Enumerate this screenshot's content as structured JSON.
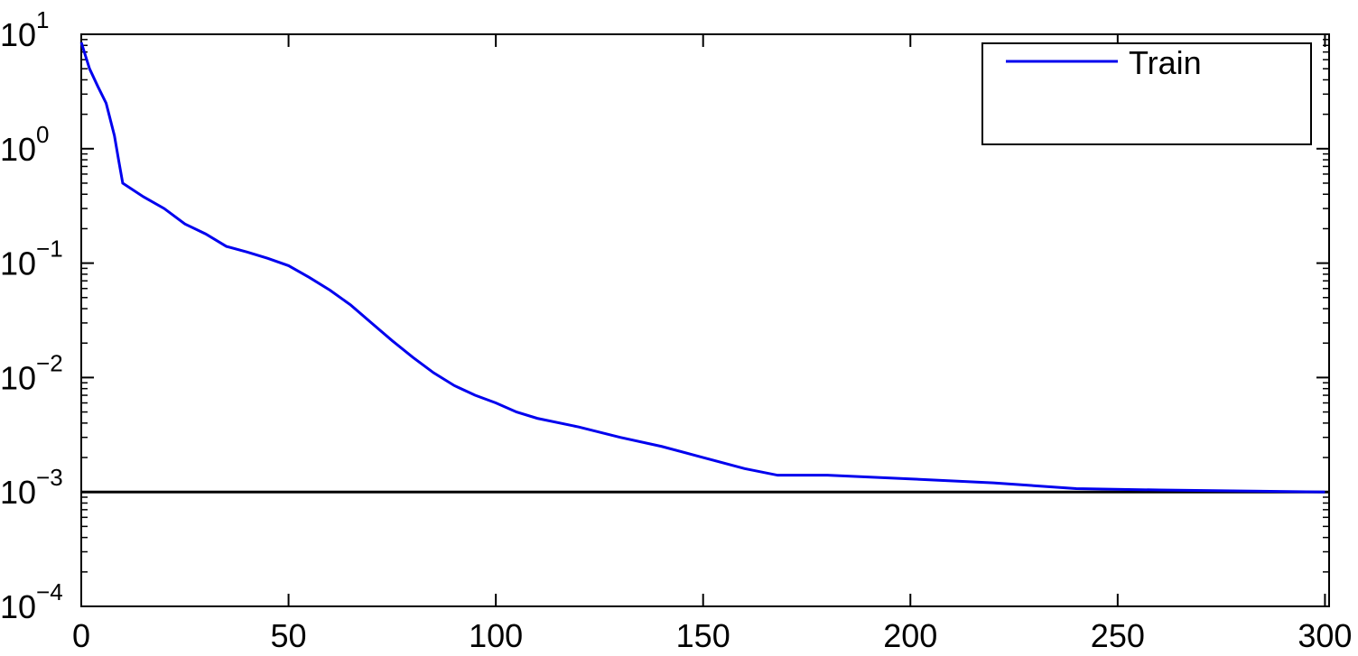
{
  "chart_data": {
    "type": "line",
    "log_y": true,
    "x": [
      0,
      2,
      4,
      6,
      8,
      9,
      10,
      15,
      20,
      25,
      30,
      35,
      40,
      45,
      50,
      55,
      60,
      65,
      70,
      75,
      80,
      85,
      90,
      95,
      100,
      105,
      110,
      120,
      130,
      140,
      150,
      160,
      168,
      180,
      200,
      220,
      240,
      260,
      280,
      300
    ],
    "series": [
      {
        "name": "Train",
        "color": "#0000ee",
        "values": [
          8.5,
          5,
          3.5,
          2.5,
          1.3,
          0.8,
          0.5,
          0.38,
          0.3,
          0.22,
          0.18,
          0.14,
          0.125,
          0.11,
          0.095,
          0.075,
          0.058,
          0.043,
          0.03,
          0.021,
          0.015,
          0.011,
          0.0085,
          0.007,
          0.006,
          0.005,
          0.0044,
          0.0037,
          0.003,
          0.0025,
          0.002,
          0.0016,
          0.0014,
          0.0014,
          0.0013,
          0.0012,
          0.00107,
          0.00104,
          0.00102,
          0.001
        ]
      }
    ],
    "goal_line": 0.001,
    "goal_color": "#000000",
    "xlim": [
      0,
      301
    ],
    "xticks": [
      0,
      50,
      100,
      150,
      200,
      250,
      300
    ],
    "ylim": [
      0.0001,
      10
    ],
    "yticks": [
      {
        "value": 10,
        "label": "10",
        "exponent": "1"
      },
      {
        "value": 1,
        "label": "10",
        "exponent": "0"
      },
      {
        "value": 0.1,
        "label": "10",
        "exponent": "−1"
      },
      {
        "value": 0.01,
        "label": "10",
        "exponent": "−2"
      },
      {
        "value": 0.001,
        "label": "10",
        "exponent": "−3"
      },
      {
        "value": 0.0001,
        "label": "10",
        "exponent": "−4"
      }
    ],
    "legend_position": "upper right"
  }
}
